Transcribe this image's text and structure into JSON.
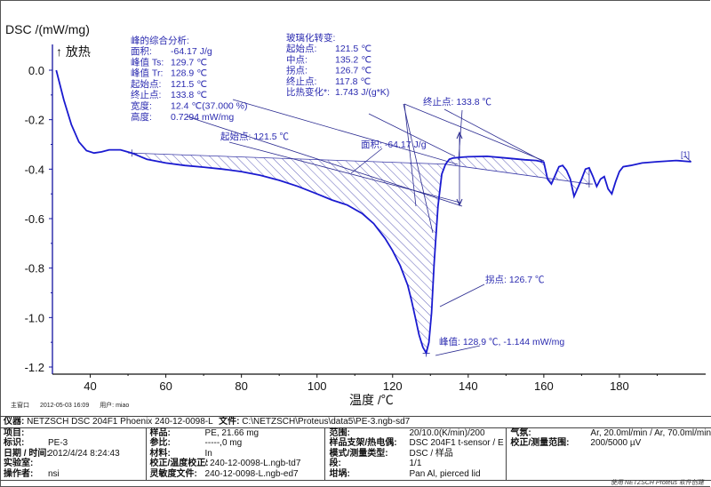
{
  "chart_data": {
    "type": "line",
    "title": "",
    "ylabel": "DSC /(mW/mg)",
    "exo_label": "↑ 放热",
    "xlabel": "温度 /℃",
    "xlim": [
      30,
      200
    ],
    "ylim": [
      -1.2,
      0.08
    ],
    "xticks": [
      "40",
      "60",
      "80",
      "100",
      "120",
      "140",
      "160",
      "180"
    ],
    "xtick_values": [
      40,
      60,
      80,
      100,
      120,
      140,
      160,
      180
    ],
    "yticks": [
      "0.0",
      "-0.2",
      "-0.4",
      "-0.6",
      "-0.8",
      "-1.0",
      "-1.2"
    ],
    "ytick_values": [
      0.0,
      -0.2,
      -0.4,
      -0.6,
      -0.8,
      -1.0,
      -1.2
    ],
    "series": [
      {
        "name": "[1]",
        "color": "#1a1ad0",
        "x": [
          31,
          33,
          35,
          37,
          39,
          41,
          43,
          45,
          48,
          51,
          55,
          60,
          65,
          70,
          75,
          80,
          85,
          90,
          95,
          100,
          104,
          108,
          112,
          115,
          118,
          120,
          122,
          124,
          125,
          126,
          127,
          128,
          128.9,
          129.6,
          130.3,
          131,
          132,
          133,
          134,
          135,
          136,
          138,
          140,
          145,
          150,
          155,
          158,
          160,
          161,
          162,
          164,
          165,
          166,
          167,
          168,
          169,
          170,
          171,
          172,
          173,
          174,
          175,
          176,
          177,
          178,
          179,
          180,
          181,
          183,
          186,
          190,
          195,
          199
        ],
        "y": [
          0.0,
          -0.12,
          -0.22,
          -0.29,
          -0.325,
          -0.335,
          -0.33,
          -0.322,
          -0.322,
          -0.335,
          -0.36,
          -0.375,
          -0.385,
          -0.392,
          -0.4,
          -0.41,
          -0.425,
          -0.445,
          -0.47,
          -0.5,
          -0.525,
          -0.545,
          -0.58,
          -0.62,
          -0.68,
          -0.73,
          -0.79,
          -0.87,
          -0.93,
          -1.0,
          -1.07,
          -1.12,
          -1.144,
          -1.1,
          -0.98,
          -0.78,
          -0.55,
          -0.42,
          -0.38,
          -0.36,
          -0.355,
          -0.352,
          -0.35,
          -0.348,
          -0.355,
          -0.362,
          -0.365,
          -0.372,
          -0.44,
          -0.46,
          -0.39,
          -0.385,
          -0.405,
          -0.44,
          -0.51,
          -0.475,
          -0.44,
          -0.4,
          -0.395,
          -0.43,
          -0.47,
          -0.44,
          -0.43,
          -0.48,
          -0.5,
          -0.45,
          -0.41,
          -0.39,
          -0.385,
          -0.375,
          -0.37,
          -0.365,
          -0.37
        ]
      }
    ],
    "series_label": "[1]",
    "annotations": {
      "peak_analysis": {
        "header": "峰的综合分析:",
        "rows": [
          {
            "label": "面积:",
            "value": "-64.17 J/g"
          },
          {
            "label": "峰值 Ts:",
            "value": "129.7 ℃"
          },
          {
            "label": "峰值 Tr:",
            "value": "128.9 ℃"
          },
          {
            "label": "起始点:",
            "value": "121.5 ℃"
          },
          {
            "label": "终止点:",
            "value": "133.8 ℃"
          },
          {
            "label": "宽度:",
            "value": "12.4 ℃(37.000 %)"
          },
          {
            "label": "高度:",
            "value": "0.7294 mW/mg"
          }
        ]
      },
      "glass_transition": {
        "header": "玻璃化转变:",
        "rows": [
          {
            "label": "起始点:",
            "value": "121.5 ℃"
          },
          {
            "label": "中点:",
            "value": "135.2 ℃"
          },
          {
            "label": "拐点:",
            "value": "126.7 ℃"
          },
          {
            "label": "终止点:",
            "value": "117.8 ℃"
          },
          {
            "label": "比热变化*:",
            "value": "1.743 J/(g*K)"
          }
        ]
      },
      "onset_label": "起始点: 121.5 ℃",
      "area_label": "面积: -64.17 J/g",
      "end_label": "终止点: 133.8 ℃",
      "inflection_label": "拐点: 126.7 ℃",
      "peak_label": "峰值: 128.9 ℃, -1.144 mW/mg"
    }
  },
  "status": {
    "window": "主窗口",
    "datetime": "2012-05-03 16:09",
    "user": "用户: miao"
  },
  "info": {
    "instrument_label": "仪器:",
    "instrument_value": "NETZSCH DSC 204F1 Phoenix 240-12-0098-L",
    "file_label": "文件:",
    "file_value": "C:\\NETZSCH\\Proteus\\data5\\PE-3.ngb-sd7",
    "col1": [
      {
        "label": "项目:",
        "value": ""
      },
      {
        "label": "标识:",
        "value": "PE-3"
      },
      {
        "label": "日期 / 时间:",
        "value": "2012/4/24 8:24:43"
      },
      {
        "label": "实验室:",
        "value": ""
      },
      {
        "label": "操作者:",
        "value": "nsi"
      }
    ],
    "col2": [
      {
        "label": "样品:",
        "value": "PE, 21.66 mg"
      },
      {
        "label": "参比:",
        "value": "-----,0 mg"
      },
      {
        "label": "材料:",
        "value": "In"
      },
      {
        "label": "校正/温度校正:",
        "value": "/ 240-12-0098-L.ngb-td7"
      },
      {
        "label": "灵敏度文件:",
        "value": "240-12-0098-L.ngb-ed7"
      }
    ],
    "col3": [
      {
        "label": "范围:",
        "value": "20/10.0(K/min)/200"
      },
      {
        "label": "样品支架/热电偶:",
        "value": "DSC 204F1 t-sensor / E"
      },
      {
        "label": "模式/测量类型:",
        "value": "DSC / 样品"
      },
      {
        "label": "段:",
        "value": "1/1"
      },
      {
        "label": "坩埚:",
        "value": "Pan Al, pierced lid"
      }
    ],
    "col4": [
      {
        "label": "气氛:",
        "value": "Ar, 20.0ml/min / Ar, 70.0ml/min"
      },
      {
        "label": "校正/测量范围:",
        "value": "200/5000 µV"
      }
    ]
  },
  "footer": "使用 NETZSCH Proteus 软件创建"
}
